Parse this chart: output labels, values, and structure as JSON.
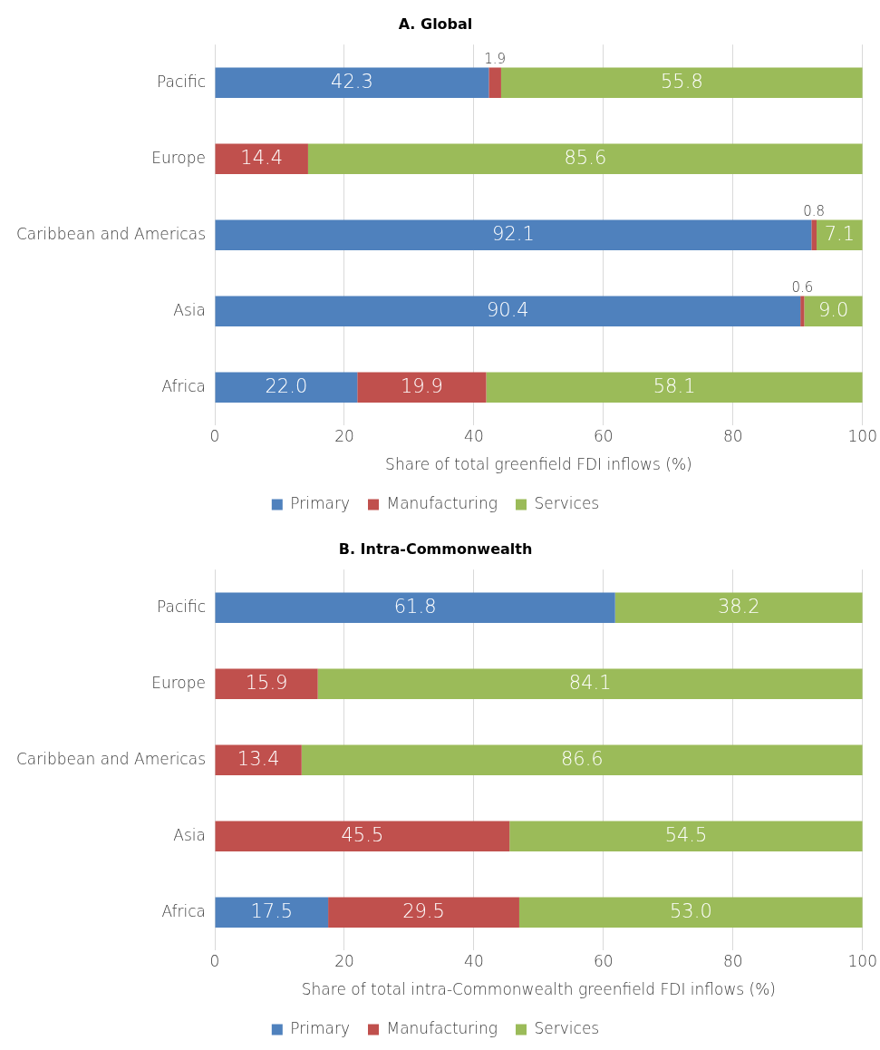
{
  "chart_data": [
    {
      "type": "bar",
      "orientation": "horizontal",
      "stacked": true,
      "title": "A. Global",
      "xlabel": "Share of total greenfield FDI inflows (%)",
      "categories": [
        "Pacific",
        "Europe",
        "Caribbean and Americas",
        "Asia",
        "Africa"
      ],
      "xlim": [
        0,
        100
      ],
      "xticks": [
        0,
        20,
        40,
        60,
        80,
        100
      ],
      "grid": "x",
      "legend": "bottom",
      "series": [
        {
          "name": "Primary",
          "color": "#4f81bd",
          "values": [
            42.3,
            0,
            92.1,
            90.4,
            22.0
          ],
          "value_labels": [
            "42.3",
            null,
            "92.1",
            "90.4",
            "22.0"
          ]
        },
        {
          "name": "Manufacturing",
          "color": "#c0504d",
          "values": [
            1.9,
            14.4,
            0.8,
            0.6,
            19.9
          ],
          "value_labels": [
            "1.9",
            "14.4",
            "0.8",
            "0.6",
            "19.9"
          ]
        },
        {
          "name": "Services",
          "color": "#9bbb59",
          "values": [
            55.8,
            85.6,
            7.1,
            9.0,
            58.1
          ],
          "value_labels": [
            "55.8",
            "85.6",
            "7.1",
            "9.0",
            "58.1"
          ]
        }
      ]
    },
    {
      "type": "bar",
      "orientation": "horizontal",
      "stacked": true,
      "title": "B. Intra-Commonwealth",
      "xlabel": "Share of total intra-Commonwealth greenfield FDI inflows (%)",
      "categories": [
        "Pacific",
        "Europe",
        "Caribbean and Americas",
        "Asia",
        "Africa"
      ],
      "xlim": [
        0,
        100
      ],
      "xticks": [
        0,
        20,
        40,
        60,
        80,
        100
      ],
      "grid": "x",
      "legend": "bottom",
      "series": [
        {
          "name": "Primary",
          "color": "#4f81bd",
          "values": [
            61.8,
            0,
            0,
            0,
            17.5
          ],
          "value_labels": [
            "61.8",
            null,
            null,
            null,
            "17.5"
          ]
        },
        {
          "name": "Manufacturing",
          "color": "#c0504d",
          "values": [
            0,
            15.9,
            13.4,
            45.5,
            29.5
          ],
          "value_labels": [
            null,
            "15.9",
            "13.4",
            "45.5",
            "29.5"
          ]
        },
        {
          "name": "Services",
          "color": "#9bbb59",
          "values": [
            38.2,
            84.1,
            86.6,
            54.5,
            53.0
          ],
          "value_labels": [
            "38.2",
            "84.1",
            "86.6",
            "54.5",
            "53.0"
          ]
        }
      ]
    }
  ]
}
